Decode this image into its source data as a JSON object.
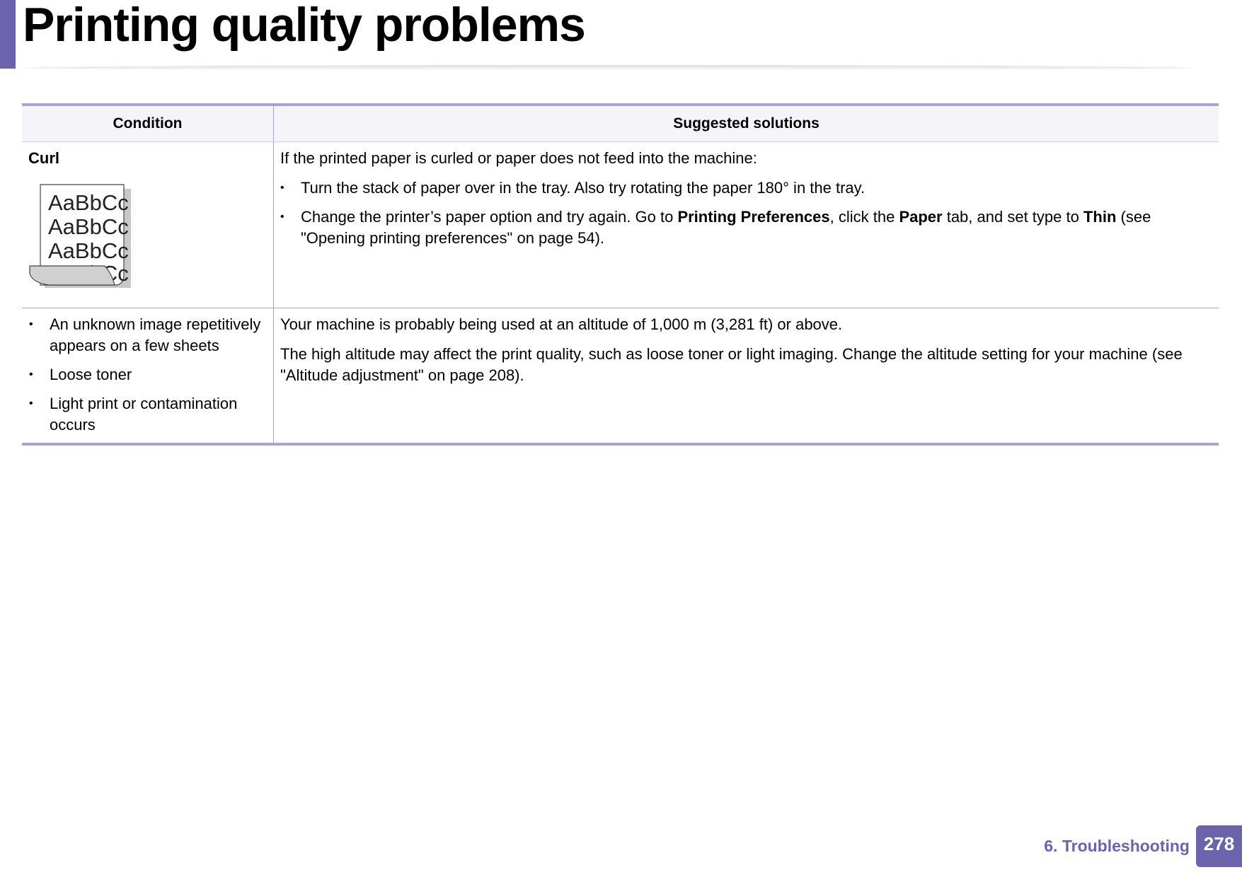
{
  "page": {
    "title": "Printing quality problems",
    "accent_color": "#6b63ab"
  },
  "table": {
    "headers": [
      "Condition",
      "Suggested solutions"
    ],
    "rows": [
      {
        "condition": "Curl",
        "illustration_text": "AaBbCc",
        "intro": "If the printed paper is curled or paper does not feed into the machine:",
        "bullets": [
          {
            "text": "Turn the stack of paper over in the tray. Also try rotating the paper 180° in the tray."
          },
          {
            "pre": "Change the printer’s paper option and try again. Go to ",
            "b1": "Printing Preferences",
            "mid1": ", click the ",
            "b2": "Paper",
            "mid2": " tab, and set type to ",
            "b3": "Thin",
            "post": " (see \"Opening printing preferences\" on page 54)."
          }
        ]
      },
      {
        "conditions": [
          "An unknown image repetitively appears on a few sheets",
          "Loose toner",
          "Light print  or contamination occurs"
        ],
        "solutions": [
          "Your machine is probably being used at an altitude of 1,000 m (3,281 ft) or above.",
          "The high altitude may affect the print quality, such as loose toner or light imaging. Change the altitude setting for your machine (see \"Altitude adjustment\" on page 208)."
        ]
      }
    ]
  },
  "footer": {
    "chapter": "6.  Troubleshooting",
    "page_number": "278"
  }
}
